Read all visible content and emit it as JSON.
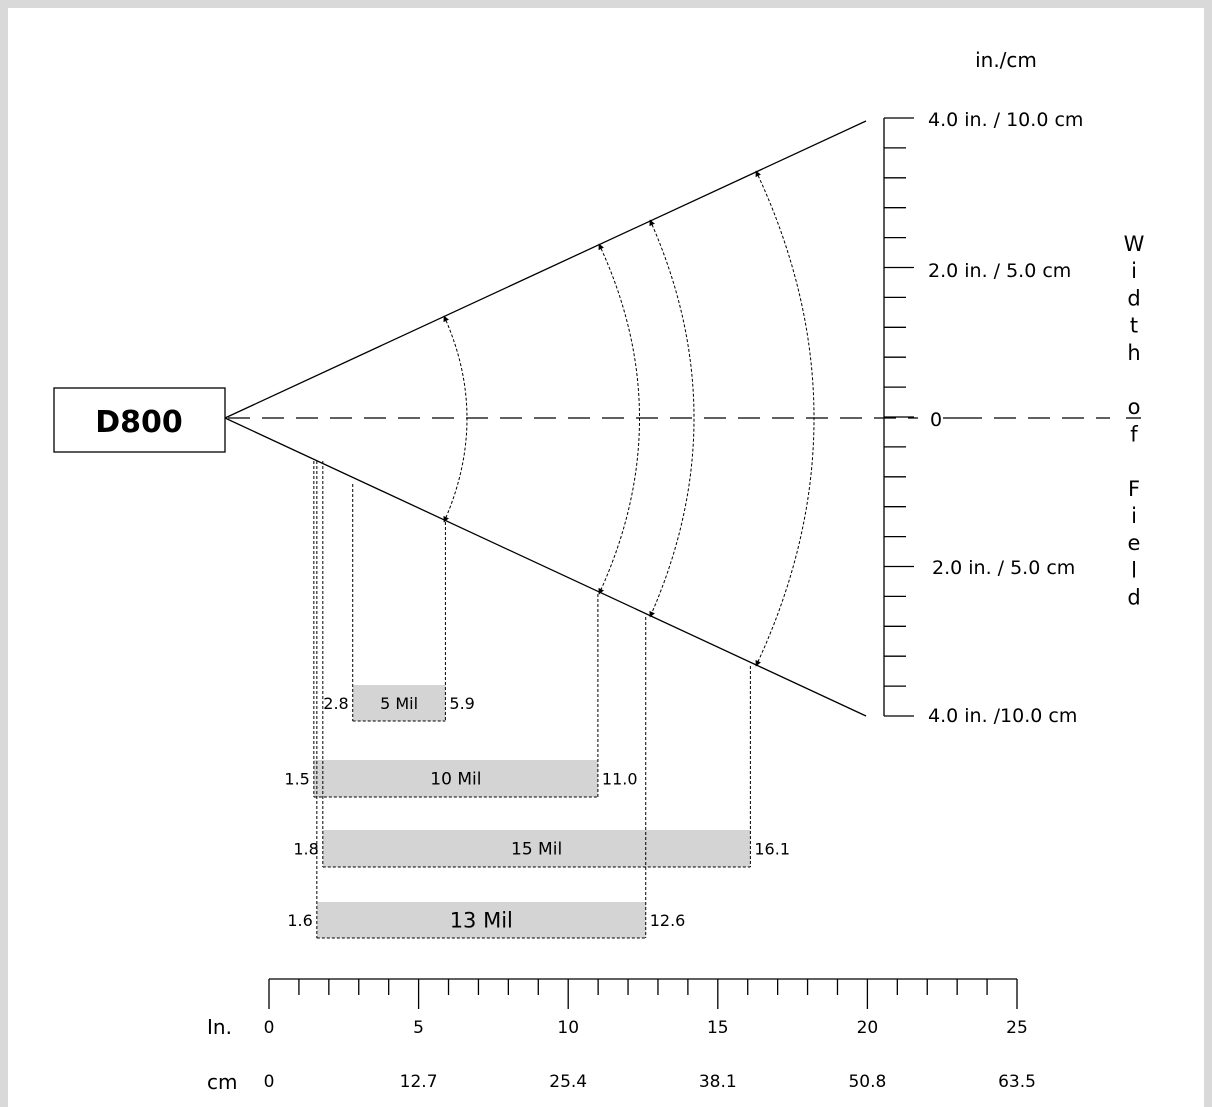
{
  "device": {
    "label": "D800"
  },
  "units_label": "in./cm",
  "right_scale": {
    "top_label": "4.0 in. / 10.0 cm",
    "upper_mid_label": "2.0 in. / 5.0 cm",
    "center_label": "0",
    "lower_mid_label": "2.0 in. / 5.0 cm",
    "bottom_label": "4.0 in. /10.0 cm"
  },
  "vertical_title": [
    "W",
    "i",
    "d",
    "t",
    "h",
    "",
    "o",
    "f",
    "",
    "F",
    "i",
    "e",
    "l",
    "d"
  ],
  "bars": [
    {
      "label": "5 Mil",
      "start": 2.8,
      "end": 5.9,
      "start_label": "2.8",
      "end_label": "5.9"
    },
    {
      "label": "10 Mil",
      "start": 1.5,
      "end": 11.0,
      "start_label": "1.5",
      "end_label": "11.0"
    },
    {
      "label": "15 Mil",
      "start": 1.8,
      "end": 16.1,
      "start_label": "1.8",
      "end_label": "16.1"
    },
    {
      "label": "13 Mil",
      "start": 1.6,
      "end": 12.6,
      "start_label": "1.6",
      "end_label": "12.6"
    }
  ],
  "bottom_axis": {
    "in_label": "In.",
    "cm_label": "cm",
    "in_ticks": [
      "0",
      "5",
      "10",
      "15",
      "20",
      "25"
    ],
    "cm_ticks": [
      "0",
      "12.7",
      "25.4",
      "38.1",
      "50.8",
      "63.5"
    ]
  },
  "colors": {
    "bar_fill": "#d4d4d4",
    "frame": "#d9d9d9"
  }
}
